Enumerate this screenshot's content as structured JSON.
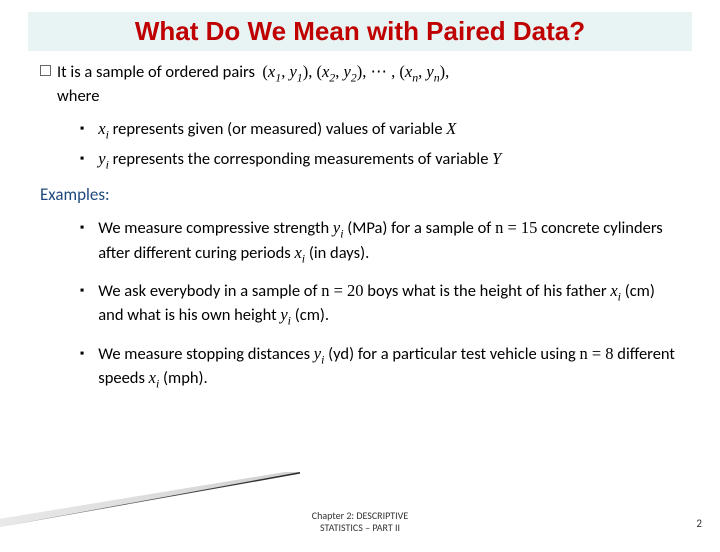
{
  "title": "What Do We Mean with Paired Data?",
  "definition": {
    "lead": "It is a sample of ordered pairs",
    "tail": "where",
    "pairs_tex": "(x₁, y₁), (x₂, y₂), ⋯ , (xₙ, yₙ),"
  },
  "sub_x": {
    "var": "xᵢ",
    "text": " represents given (or measured) values of variable ",
    "tailvar": "X"
  },
  "sub_y": {
    "var": "yᵢ",
    "text": " represents the corresponding measurements of variable ",
    "tailvar": "Y"
  },
  "examples_heading": "Examples:",
  "ex1": {
    "a": "We measure compressive strength ",
    "v1": "yᵢ",
    "b": " (MPa) for a sample of ",
    "eq": "n = 15",
    "c": " concrete cylinders after different curing periods ",
    "v2": "xᵢ",
    "d": " (in days)."
  },
  "ex2": {
    "a": "We ask everybody in a sample of  ",
    "eq": "n = 20",
    "b": " boys what is the height of his father ",
    "v1": "xᵢ",
    "c": " (cm) and what is his own height ",
    "v2": "yᵢ",
    "d": " (cm)."
  },
  "ex3": {
    "a": "We measure stopping distances ",
    "v1": "yᵢ",
    "b": " (yd) for a particular test vehicle using ",
    "eq": "n = 8",
    "c": " different speeds ",
    "v2": "xᵢ",
    "d": " (mph)."
  },
  "footer": {
    "line1": "Chapter 2: DESCRIPTIVE",
    "line2": "STATISTICS – PART II"
  },
  "pagenum": "2",
  "colors": {
    "title_bg": "#e8f4f4",
    "title_fg": "#c00000",
    "examples_fg": "#1f497d"
  }
}
